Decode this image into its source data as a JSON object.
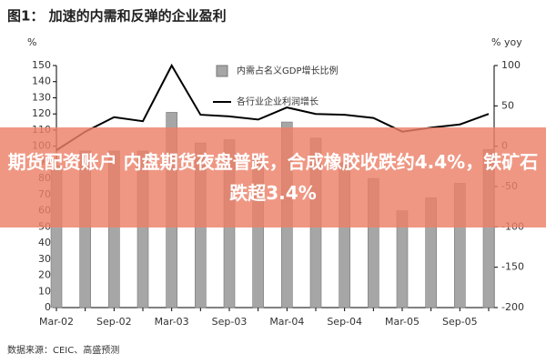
{
  "chart_data": {
    "type": "bar-line",
    "title": "图1： 加速的内需和反弹的企业盈利",
    "ylabel": "%",
    "y2label": "% yoy",
    "source": "数据来源：CEIC、高盛预测",
    "annotation": "期货配资账户 内盘期货夜盘普跌，合成橡胶收跌约4.4%，铁矿石跌超3.4%",
    "categories": [
      "Mar-02",
      null,
      "Sep-02",
      null,
      "Mar-03",
      null,
      "Sep-03",
      null,
      "Mar-04",
      null,
      "Sep-04",
      null,
      "Mar-05",
      null,
      "Sep-05",
      null
    ],
    "series": [
      {
        "name": "内需占名义GDP增长比例",
        "type": "bar",
        "color": "#a6a6a6",
        "values": [
          88,
          97,
          97,
          97,
          121,
          102,
          104,
          95,
          115,
          105,
          90,
          80,
          60,
          68,
          77,
          98
        ]
      },
      {
        "name": "各行业企业利润增长",
        "type": "line",
        "axis": "y2",
        "color": "#000000",
        "values": [
          -5,
          18,
          36,
          31,
          100,
          39,
          37,
          33,
          48,
          40,
          39,
          35,
          18,
          23,
          27,
          40
        ]
      }
    ],
    "ylim": [
      0,
      150
    ],
    "yticks": [
      0,
      10,
      20,
      30,
      40,
      50,
      60,
      70,
      80,
      90,
      100,
      110,
      120,
      130,
      140,
      150
    ],
    "y2lim": [
      -200,
      100
    ],
    "y2ticks": [
      -200,
      -150,
      -100,
      -50,
      0,
      50,
      100
    ],
    "grid": false
  }
}
